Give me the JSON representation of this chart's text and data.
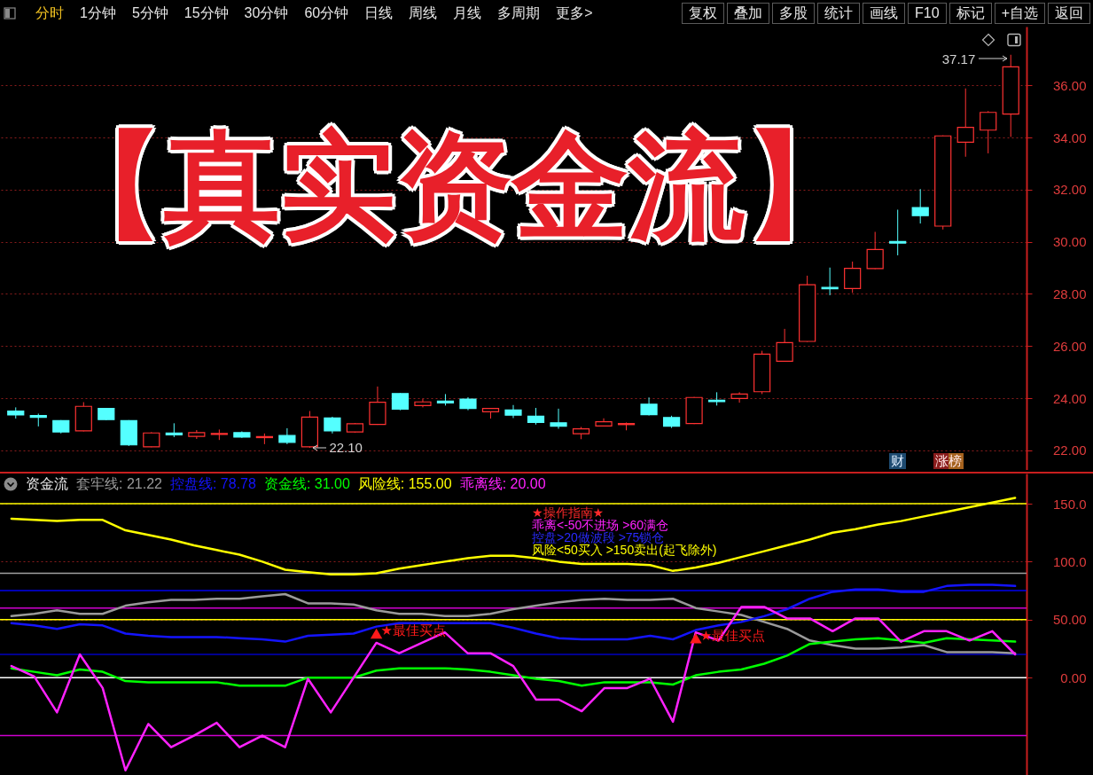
{
  "chart_data": [
    {
      "type": "other",
      "annotations": [
        "分时",
        "1分钟",
        "5分钟",
        "15分钟",
        "30分钟",
        "60分钟",
        "日线",
        "周线",
        "月线",
        "多周期",
        "更多>",
        "复权",
        "叠加",
        "多股",
        "统计",
        "画线",
        "F10",
        "标记",
        "+自选",
        "返回"
      ]
    },
    {
      "type": "candlestick",
      "title": "【真实资金流】",
      "categories": [
        null,
        null,
        null,
        null,
        null,
        null,
        null,
        null,
        null,
        null,
        null,
        null,
        null,
        null,
        null,
        null,
        null,
        null,
        null,
        null,
        null,
        null,
        null,
        null,
        null,
        null,
        null,
        null,
        null,
        null,
        null,
        null,
        null,
        null,
        null,
        null,
        null,
        null,
        null,
        null,
        null,
        null,
        null,
        null,
        null
      ],
      "ohlc": [
        [
          23.51,
          23.65,
          23.22,
          23.36
        ],
        [
          23.34,
          23.41,
          22.92,
          23.27
        ],
        [
          23.14,
          23.16,
          22.65,
          22.71
        ],
        [
          22.75,
          23.85,
          22.73,
          23.69
        ],
        [
          23.61,
          23.63,
          23.16,
          23.18
        ],
        [
          23.14,
          23.16,
          22.17,
          22.21
        ],
        [
          22.14,
          22.7,
          22.12,
          22.67
        ],
        [
          22.67,
          23.04,
          22.51,
          22.6
        ],
        [
          22.54,
          22.78,
          22.44,
          22.68
        ],
        [
          22.61,
          22.8,
          22.4,
          22.65
        ],
        [
          22.68,
          22.73,
          22.48,
          22.51
        ],
        [
          22.49,
          22.65,
          22.24,
          22.53
        ],
        [
          22.57,
          22.85,
          22.24,
          22.31
        ],
        [
          22.14,
          23.51,
          22.1,
          23.28
        ],
        [
          23.24,
          23.29,
          22.65,
          22.75
        ],
        [
          22.71,
          23.05,
          22.68,
          23.02
        ],
        [
          23.0,
          24.45,
          22.98,
          23.85
        ],
        [
          24.18,
          24.2,
          23.54,
          23.58
        ],
        [
          23.72,
          23.98,
          23.65,
          23.86
        ],
        [
          23.89,
          24.16,
          23.72,
          23.82
        ],
        [
          23.97,
          24.04,
          23.54,
          23.61
        ],
        [
          23.48,
          23.63,
          23.22,
          23.61
        ],
        [
          23.55,
          23.74,
          23.24,
          23.35
        ],
        [
          23.31,
          23.63,
          22.99,
          23.07
        ],
        [
          23.06,
          23.6,
          22.83,
          22.93
        ],
        [
          22.64,
          22.9,
          22.43,
          22.83
        ],
        [
          22.94,
          23.23,
          22.92,
          23.1
        ],
        [
          22.99,
          23.07,
          22.77,
          23.03
        ],
        [
          23.77,
          24.03,
          23.34,
          23.37
        ],
        [
          23.26,
          23.33,
          22.86,
          22.93
        ],
        [
          23.03,
          24.05,
          23.01,
          24.03
        ],
        [
          23.92,
          24.23,
          23.72,
          23.87
        ],
        [
          23.99,
          24.23,
          23.83,
          24.16
        ],
        [
          24.25,
          25.82,
          24.16,
          25.69
        ],
        [
          25.42,
          26.66,
          25.4,
          26.13
        ],
        [
          26.18,
          28.7,
          26.16,
          28.35
        ],
        [
          28.25,
          29.01,
          27.95,
          28.2
        ],
        [
          28.21,
          29.24,
          28.04,
          28.98
        ],
        [
          28.97,
          30.38,
          28.95,
          29.7
        ],
        [
          30.01,
          31.23,
          29.48,
          29.95
        ],
        [
          31.31,
          32.02,
          30.7,
          31.0
        ],
        [
          30.6,
          34.08,
          30.47,
          34.06
        ],
        [
          33.82,
          35.88,
          33.26,
          34.39
        ],
        [
          34.28,
          35.01,
          33.39,
          34.96
        ],
        [
          34.9,
          37.17,
          34.02,
          36.71
        ]
      ],
      "colors": [
        "#54ffff",
        "#54ffff",
        "#54ffff",
        "#ff3232",
        "#54ffff",
        "#54ffff",
        "#ff3232",
        "#54ffff",
        "#ff3232",
        "#ff3232",
        "#54ffff",
        "#ff3232",
        "#54ffff",
        "#ff3232",
        "#54ffff",
        "#ff3232",
        "#ff3232",
        "#54ffff",
        "#ff3232",
        "#54ffff",
        "#54ffff",
        "#ff3232",
        "#54ffff",
        "#54ffff",
        "#54ffff",
        "#ff3232",
        "#ff3232",
        "#ff3232",
        "#54ffff",
        "#54ffff",
        "#ff3232",
        "#54ffff",
        "#ff3232",
        "#ff3232",
        "#ff3232",
        "#ff3232",
        "#54ffff",
        "#ff3232",
        "#ff3232",
        "#54ffff",
        "#54ffff",
        "#ff3232",
        "#ff3232",
        "#ff3232",
        "#ff3232"
      ],
      "ylim": [
        21.25,
        38.25
      ],
      "yticks": [
        {
          "value": 22,
          "label": "22.00"
        },
        {
          "value": 24,
          "label": "24.00"
        },
        {
          "value": 26,
          "label": "26.00"
        },
        {
          "value": 28,
          "label": "28.00"
        },
        {
          "value": 30,
          "label": "30.00"
        },
        {
          "value": 32,
          "label": "32.00"
        },
        {
          "value": 34,
          "label": "34.00"
        },
        {
          "value": 36,
          "label": "36.00"
        }
      ],
      "grid": "y",
      "annotations": [
        "37.17",
        "22.10",
        "财",
        "涨榜"
      ]
    },
    {
      "type": "line",
      "title": "资金流",
      "categories": [
        null,
        null,
        null,
        null,
        null,
        null,
        null,
        null,
        null,
        null,
        null,
        null,
        null,
        null,
        null,
        null,
        null,
        null,
        null,
        null,
        null,
        null,
        null,
        null,
        null,
        null,
        null,
        null,
        null,
        null,
        null,
        null,
        null,
        null,
        null,
        null,
        null,
        null,
        null,
        null,
        null,
        null,
        null,
        null,
        null
      ],
      "series": [
        {
          "name": "套牢线: 21.22",
          "color": "#9a9a9a",
          "values": [
            53,
            55,
            58,
            55,
            55,
            62,
            65,
            67,
            67,
            68,
            68,
            70,
            72,
            64,
            64,
            63,
            58,
            55,
            55,
            53,
            53,
            55,
            59,
            62,
            65,
            67,
            68,
            67,
            67,
            68,
            60,
            57,
            54,
            48,
            42,
            32,
            28,
            25,
            25,
            26,
            28,
            22,
            22,
            22,
            21
          ]
        },
        {
          "name": "控盘线: 78.78",
          "color": "#1414ff",
          "values": [
            47,
            45,
            42,
            46,
            45,
            38,
            36,
            35,
            35,
            35,
            34,
            33,
            31,
            36,
            37,
            38,
            44,
            47,
            47,
            47,
            47,
            47,
            43,
            38,
            34,
            33,
            33,
            33,
            36,
            33,
            41,
            45,
            48,
            53,
            59,
            68,
            74,
            76,
            76,
            74,
            74,
            79,
            80,
            80,
            79
          ]
        },
        {
          "name": "资金线: 31.00",
          "color": "#00ff00",
          "values": [
            8,
            5,
            2,
            7,
            5,
            -3,
            -4,
            -4,
            -4,
            -4,
            -7,
            -7,
            -7,
            0,
            0,
            0,
            6,
            8,
            8,
            8,
            7,
            5,
            2,
            -1,
            -3,
            -7,
            -4,
            -4,
            -4,
            -6,
            2,
            5,
            7,
            12,
            19,
            29,
            31,
            33,
            34,
            32,
            30,
            34,
            33,
            32,
            31
          ]
        },
        {
          "name": "风险线: 155.00",
          "color": "#ffff00",
          "values": [
            137,
            136,
            135,
            136,
            136,
            127,
            123,
            119,
            114,
            110,
            106,
            100,
            93,
            91,
            89,
            89,
            90,
            94,
            97,
            100,
            103,
            105,
            105,
            103,
            100,
            98,
            98,
            98,
            97,
            92,
            95,
            99,
            104,
            109,
            114,
            119,
            125,
            128,
            132,
            135,
            139,
            143,
            147,
            151,
            155
          ]
        },
        {
          "name": "乖离线: 20.00",
          "color": "#ff22ff",
          "values": [
            10,
            1,
            -30,
            20,
            -9,
            -80,
            -40,
            -60,
            -50,
            -39,
            -60,
            -50,
            -60,
            -1,
            -30,
            0,
            30,
            21,
            30,
            39,
            21,
            21,
            10,
            -19,
            -19,
            -29,
            -9,
            -9,
            -1,
            -38,
            39,
            32,
            61,
            61,
            51,
            51,
            40,
            51,
            51,
            31,
            40,
            40,
            32,
            40,
            20
          ]
        },
        {
          "name": "★最佳买点",
          "type": "scatter",
          "marker": "triangle",
          "color": "#ff1a1a",
          "values": [
            null,
            null,
            null,
            null,
            null,
            null,
            null,
            null,
            null,
            null,
            null,
            null,
            null,
            null,
            null,
            null,
            38,
            null,
            null,
            null,
            null,
            null,
            null,
            null,
            null,
            null,
            null,
            null,
            null,
            null,
            34,
            null,
            null,
            null,
            null,
            null,
            null,
            null,
            null,
            null,
            null,
            null,
            null,
            null,
            null
          ]
        }
      ],
      "ylim": [
        -84,
        176
      ],
      "yticks": [
        {
          "value": 0,
          "label": "0.00"
        },
        {
          "value": 50,
          "label": "50.00"
        },
        {
          "value": 100,
          "label": "100.0"
        },
        {
          "value": 150,
          "label": "150.0"
        }
      ],
      "grid": "y",
      "legend": "top left",
      "ref_lines": [
        {
          "axis": "y",
          "value": 150,
          "color": "#ffff00"
        },
        {
          "axis": "y",
          "value": 90,
          "color": "#a0a0a0"
        },
        {
          "axis": "y",
          "value": 75,
          "color": "#0000ee"
        },
        {
          "axis": "y",
          "value": 60,
          "color": "#d000d0"
        },
        {
          "axis": "y",
          "value": 50,
          "color": "#ffff00"
        },
        {
          "axis": "y",
          "value": 20,
          "color": "#0000c0"
        },
        {
          "axis": "y",
          "value": 0,
          "color": "#ffffff"
        },
        {
          "axis": "y",
          "value": -50,
          "color": "#d000d0"
        }
      ],
      "annotations": [
        "★操作指南★",
        "乖离<-50不进场 >60满仓",
        "控盘>20做波段 >75锁仓",
        "风险<50买入 >150卖出(起飞除外)"
      ]
    }
  ]
}
